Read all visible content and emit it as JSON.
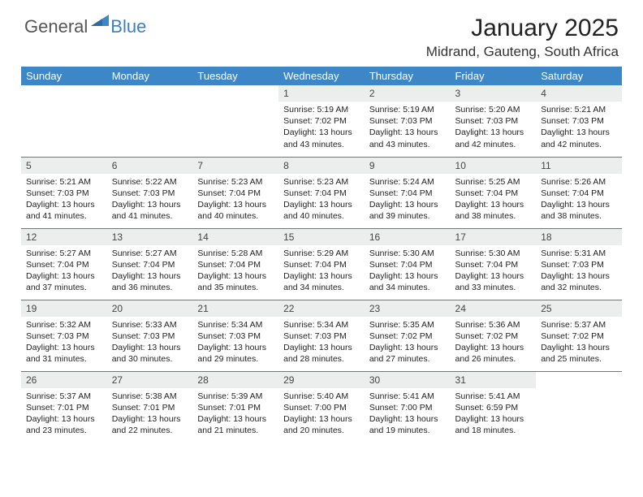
{
  "brand": {
    "part1": "General",
    "part2": "Blue",
    "icon_color": "#3d87c7"
  },
  "title": "January 2025",
  "location": "Midrand, Gauteng, South Africa",
  "header_bg": "#3d87c7",
  "header_fg": "#ffffff",
  "daynum_bg": "#eceded",
  "row_border": "#5a7ba8",
  "font_family": "Arial",
  "day_headers": [
    "Sunday",
    "Monday",
    "Tuesday",
    "Wednesday",
    "Thursday",
    "Friday",
    "Saturday"
  ],
  "weeks": [
    [
      {
        "n": "",
        "sr": "",
        "ss": "",
        "dl": "",
        "empty": true
      },
      {
        "n": "",
        "sr": "",
        "ss": "",
        "dl": "",
        "empty": true
      },
      {
        "n": "",
        "sr": "",
        "ss": "",
        "dl": "",
        "empty": true
      },
      {
        "n": "1",
        "sr": "5:19 AM",
        "ss": "7:02 PM",
        "dl": "13 hours and 43 minutes."
      },
      {
        "n": "2",
        "sr": "5:19 AM",
        "ss": "7:03 PM",
        "dl": "13 hours and 43 minutes."
      },
      {
        "n": "3",
        "sr": "5:20 AM",
        "ss": "7:03 PM",
        "dl": "13 hours and 42 minutes."
      },
      {
        "n": "4",
        "sr": "5:21 AM",
        "ss": "7:03 PM",
        "dl": "13 hours and 42 minutes."
      }
    ],
    [
      {
        "n": "5",
        "sr": "5:21 AM",
        "ss": "7:03 PM",
        "dl": "13 hours and 41 minutes."
      },
      {
        "n": "6",
        "sr": "5:22 AM",
        "ss": "7:03 PM",
        "dl": "13 hours and 41 minutes."
      },
      {
        "n": "7",
        "sr": "5:23 AM",
        "ss": "7:04 PM",
        "dl": "13 hours and 40 minutes."
      },
      {
        "n": "8",
        "sr": "5:23 AM",
        "ss": "7:04 PM",
        "dl": "13 hours and 40 minutes."
      },
      {
        "n": "9",
        "sr": "5:24 AM",
        "ss": "7:04 PM",
        "dl": "13 hours and 39 minutes."
      },
      {
        "n": "10",
        "sr": "5:25 AM",
        "ss": "7:04 PM",
        "dl": "13 hours and 38 minutes."
      },
      {
        "n": "11",
        "sr": "5:26 AM",
        "ss": "7:04 PM",
        "dl": "13 hours and 38 minutes."
      }
    ],
    [
      {
        "n": "12",
        "sr": "5:27 AM",
        "ss": "7:04 PM",
        "dl": "13 hours and 37 minutes."
      },
      {
        "n": "13",
        "sr": "5:27 AM",
        "ss": "7:04 PM",
        "dl": "13 hours and 36 minutes."
      },
      {
        "n": "14",
        "sr": "5:28 AM",
        "ss": "7:04 PM",
        "dl": "13 hours and 35 minutes."
      },
      {
        "n": "15",
        "sr": "5:29 AM",
        "ss": "7:04 PM",
        "dl": "13 hours and 34 minutes."
      },
      {
        "n": "16",
        "sr": "5:30 AM",
        "ss": "7:04 PM",
        "dl": "13 hours and 34 minutes."
      },
      {
        "n": "17",
        "sr": "5:30 AM",
        "ss": "7:04 PM",
        "dl": "13 hours and 33 minutes."
      },
      {
        "n": "18",
        "sr": "5:31 AM",
        "ss": "7:03 PM",
        "dl": "13 hours and 32 minutes."
      }
    ],
    [
      {
        "n": "19",
        "sr": "5:32 AM",
        "ss": "7:03 PM",
        "dl": "13 hours and 31 minutes."
      },
      {
        "n": "20",
        "sr": "5:33 AM",
        "ss": "7:03 PM",
        "dl": "13 hours and 30 minutes."
      },
      {
        "n": "21",
        "sr": "5:34 AM",
        "ss": "7:03 PM",
        "dl": "13 hours and 29 minutes."
      },
      {
        "n": "22",
        "sr": "5:34 AM",
        "ss": "7:03 PM",
        "dl": "13 hours and 28 minutes."
      },
      {
        "n": "23",
        "sr": "5:35 AM",
        "ss": "7:02 PM",
        "dl": "13 hours and 27 minutes."
      },
      {
        "n": "24",
        "sr": "5:36 AM",
        "ss": "7:02 PM",
        "dl": "13 hours and 26 minutes."
      },
      {
        "n": "25",
        "sr": "5:37 AM",
        "ss": "7:02 PM",
        "dl": "13 hours and 25 minutes."
      }
    ],
    [
      {
        "n": "26",
        "sr": "5:37 AM",
        "ss": "7:01 PM",
        "dl": "13 hours and 23 minutes."
      },
      {
        "n": "27",
        "sr": "5:38 AM",
        "ss": "7:01 PM",
        "dl": "13 hours and 22 minutes."
      },
      {
        "n": "28",
        "sr": "5:39 AM",
        "ss": "7:01 PM",
        "dl": "13 hours and 21 minutes."
      },
      {
        "n": "29",
        "sr": "5:40 AM",
        "ss": "7:00 PM",
        "dl": "13 hours and 20 minutes."
      },
      {
        "n": "30",
        "sr": "5:41 AM",
        "ss": "7:00 PM",
        "dl": "13 hours and 19 minutes."
      },
      {
        "n": "31",
        "sr": "5:41 AM",
        "ss": "6:59 PM",
        "dl": "13 hours and 18 minutes."
      },
      {
        "n": "",
        "sr": "",
        "ss": "",
        "dl": "",
        "empty": true
      }
    ]
  ],
  "labels": {
    "sunrise": "Sunrise:",
    "sunset": "Sunset:",
    "daylight": "Daylight:"
  }
}
